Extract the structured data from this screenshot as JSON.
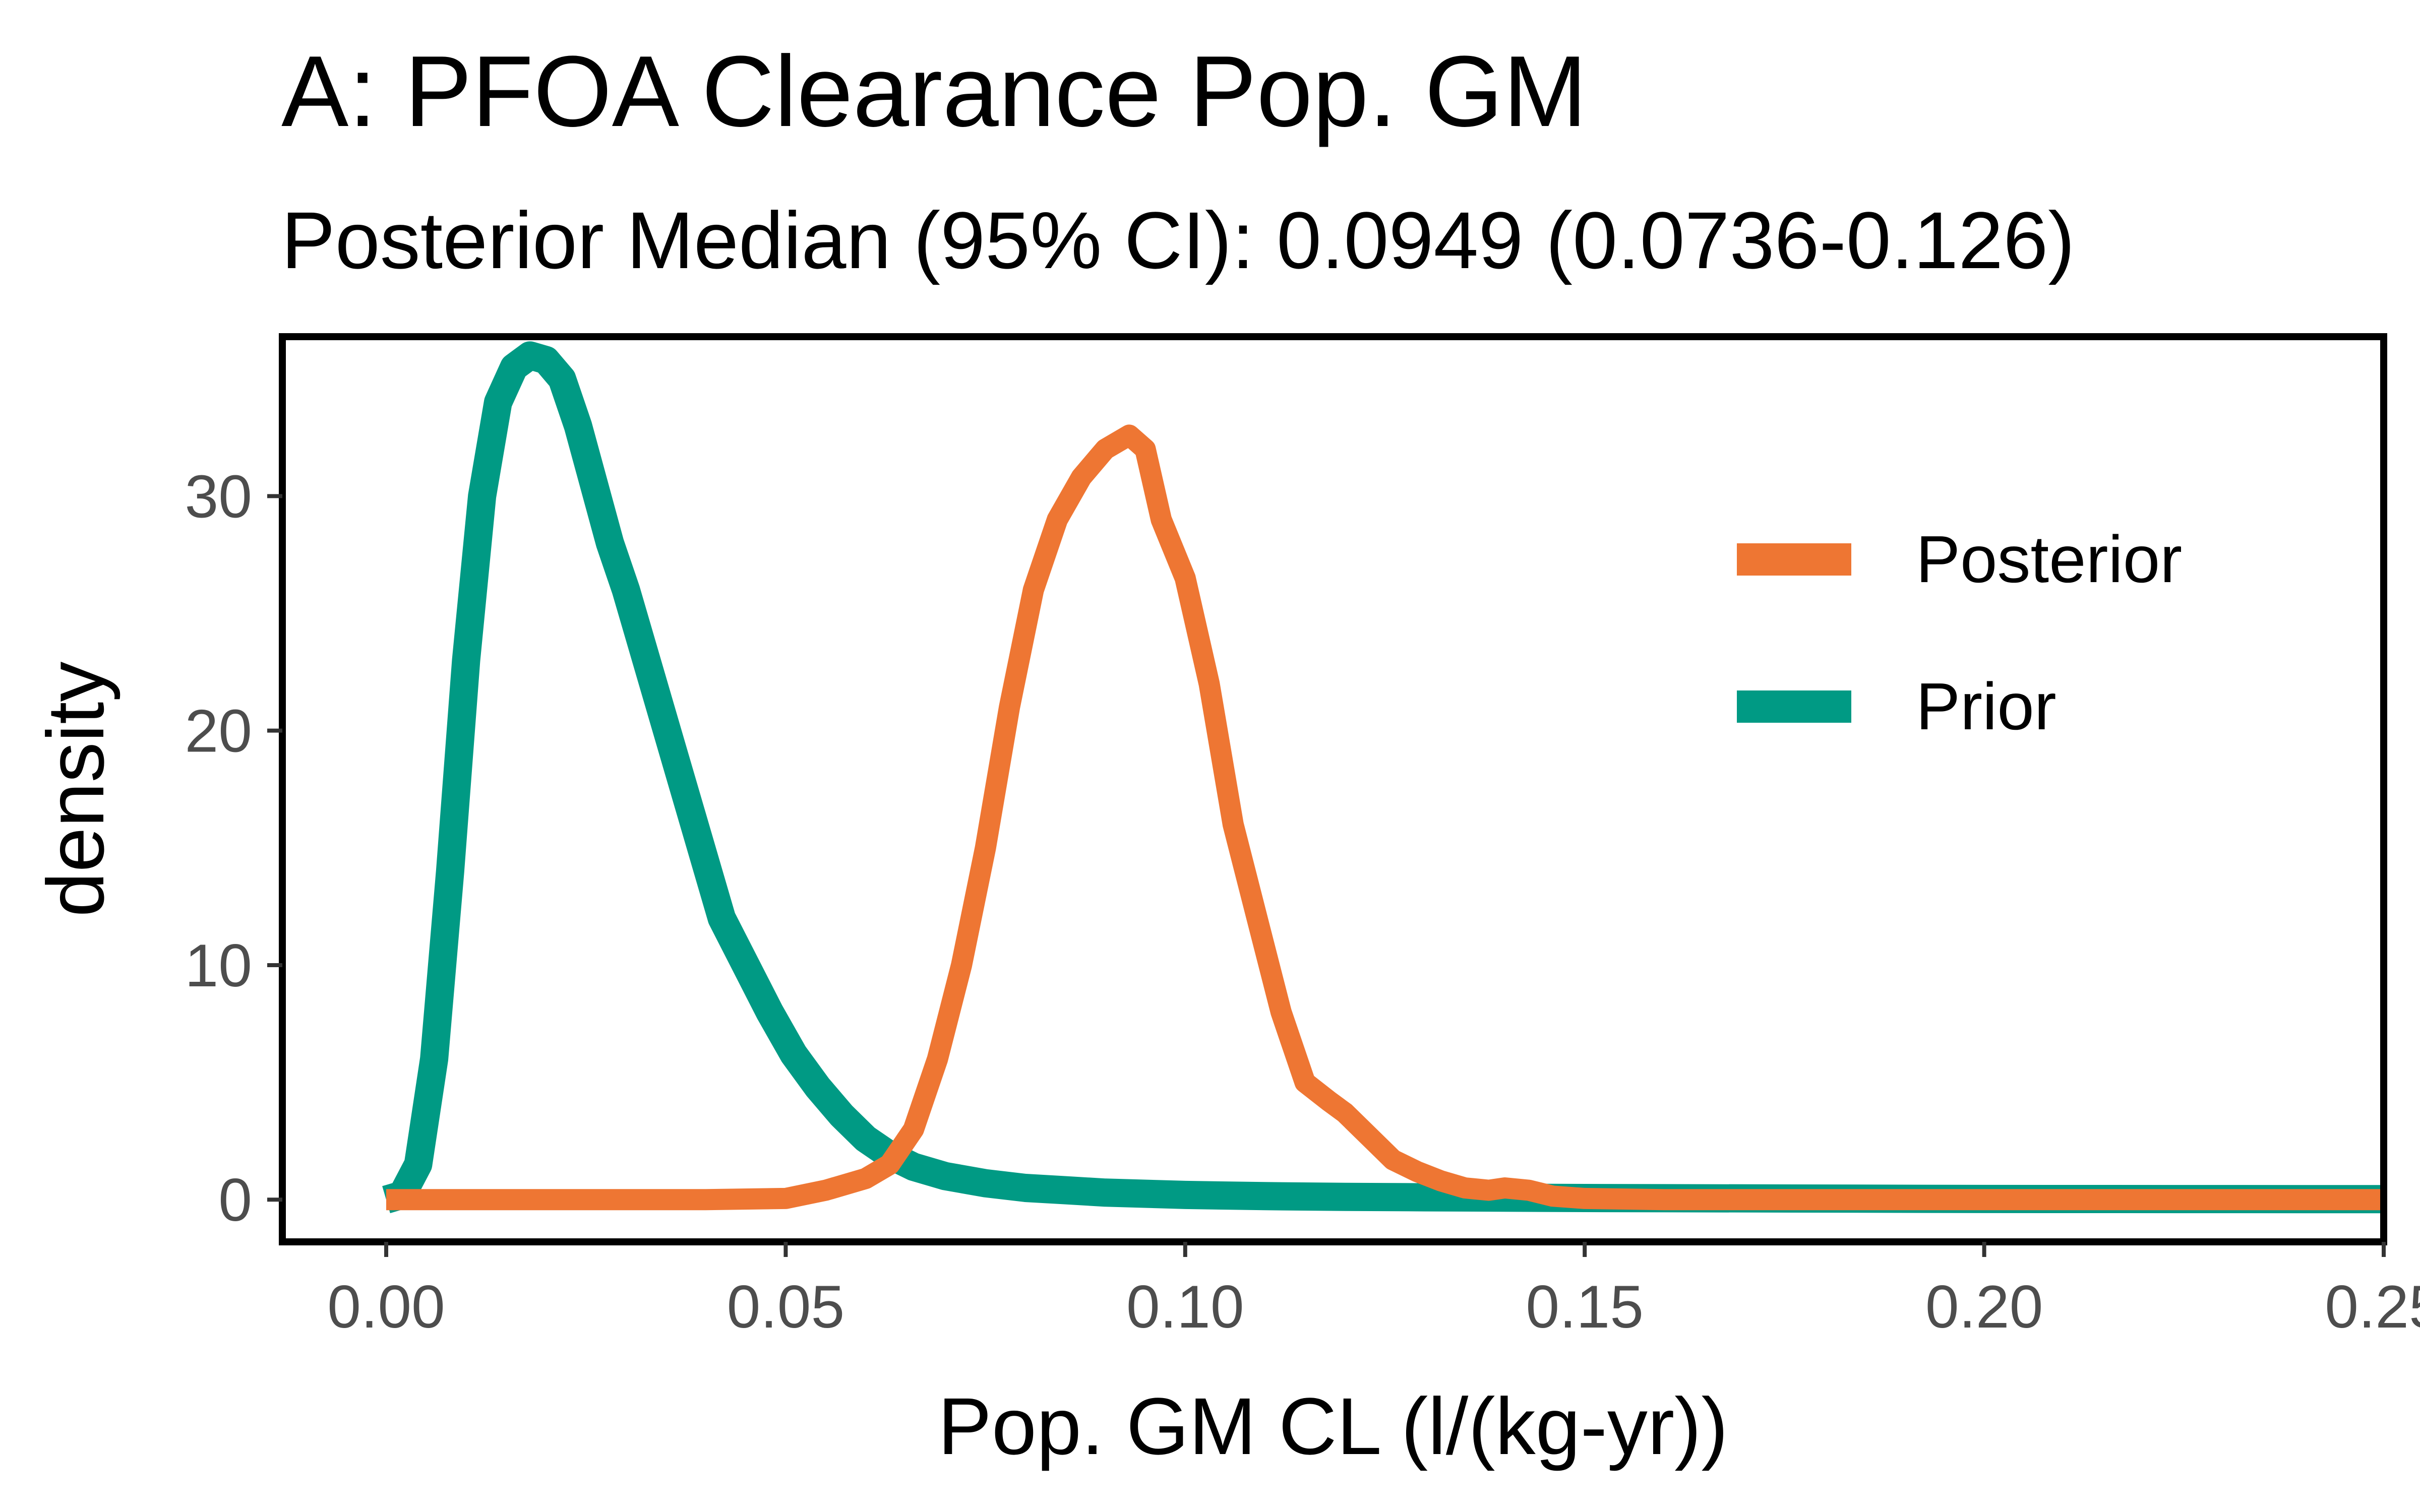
{
  "chart_data": {
    "type": "line",
    "title": "A: PFOA Clearance Pop. GM",
    "subtitle": "Posterior Median (95% CI): 0.0949 (0.0736-0.126)",
    "xlabel": "Pop. GM CL (l/(kg-yr))",
    "ylabel": "density",
    "xlim": [
      -0.013,
      0.25
    ],
    "ylim": [
      -1.8,
      36.8
    ],
    "x_ticks": [
      0.0,
      0.05,
      0.1,
      0.15,
      0.2,
      0.25
    ],
    "x_tick_labels": [
      "0.00",
      "0.05",
      "0.10",
      "0.15",
      "0.20",
      "0.25"
    ],
    "y_ticks": [
      0,
      10,
      20,
      30
    ],
    "y_tick_labels": [
      "0",
      "10",
      "20",
      "30"
    ],
    "grid": false,
    "legend_position": "top-right",
    "series": [
      {
        "name": "Prior",
        "color": "#009a84",
        "x": [
          0.0,
          0.002,
          0.004,
          0.006,
          0.008,
          0.01,
          0.012,
          0.014,
          0.016,
          0.018,
          0.02,
          0.022,
          0.024,
          0.026,
          0.028,
          0.03,
          0.033,
          0.036,
          0.039,
          0.042,
          0.045,
          0.048,
          0.051,
          0.054,
          0.057,
          0.06,
          0.063,
          0.066,
          0.07,
          0.075,
          0.08,
          0.085,
          0.09,
          0.1,
          0.11,
          0.12,
          0.13,
          0.15,
          0.2,
          0.25
        ],
        "values": [
          0.0,
          0.2,
          1.5,
          6.0,
          14.0,
          23.0,
          30.0,
          34.0,
          35.5,
          36.0,
          35.8,
          35.0,
          33.0,
          30.5,
          28.0,
          26.0,
          22.5,
          19.0,
          15.5,
          12.0,
          10.0,
          8.0,
          6.2,
          4.8,
          3.6,
          2.6,
          1.9,
          1.4,
          1.0,
          0.7,
          0.5,
          0.4,
          0.3,
          0.2,
          0.15,
          0.12,
          0.1,
          0.07,
          0.03,
          0.02
        ]
      },
      {
        "name": "Posterior",
        "color": "#ee7633",
        "x": [
          0.0,
          0.02,
          0.04,
          0.05,
          0.055,
          0.06,
          0.063,
          0.066,
          0.069,
          0.072,
          0.075,
          0.078,
          0.081,
          0.084,
          0.087,
          0.09,
          0.093,
          0.095,
          0.097,
          0.1,
          0.103,
          0.106,
          0.109,
          0.112,
          0.115,
          0.118,
          0.12,
          0.123,
          0.126,
          0.129,
          0.132,
          0.135,
          0.138,
          0.14,
          0.143,
          0.146,
          0.15,
          0.16,
          0.2,
          0.25
        ],
        "values": [
          0.0,
          0.0,
          0.0,
          0.05,
          0.4,
          0.9,
          1.5,
          3.0,
          6.0,
          10.0,
          15.0,
          21.0,
          26.0,
          29.0,
          30.8,
          32.0,
          32.6,
          32.0,
          29.0,
          26.5,
          22.0,
          16.0,
          12.0,
          8.0,
          5.0,
          4.2,
          3.7,
          2.7,
          1.7,
          1.2,
          0.8,
          0.5,
          0.4,
          0.5,
          0.4,
          0.15,
          0.05,
          0.0,
          0.0,
          0.0
        ]
      }
    ],
    "legend_order": [
      "Posterior",
      "Prior"
    ]
  }
}
